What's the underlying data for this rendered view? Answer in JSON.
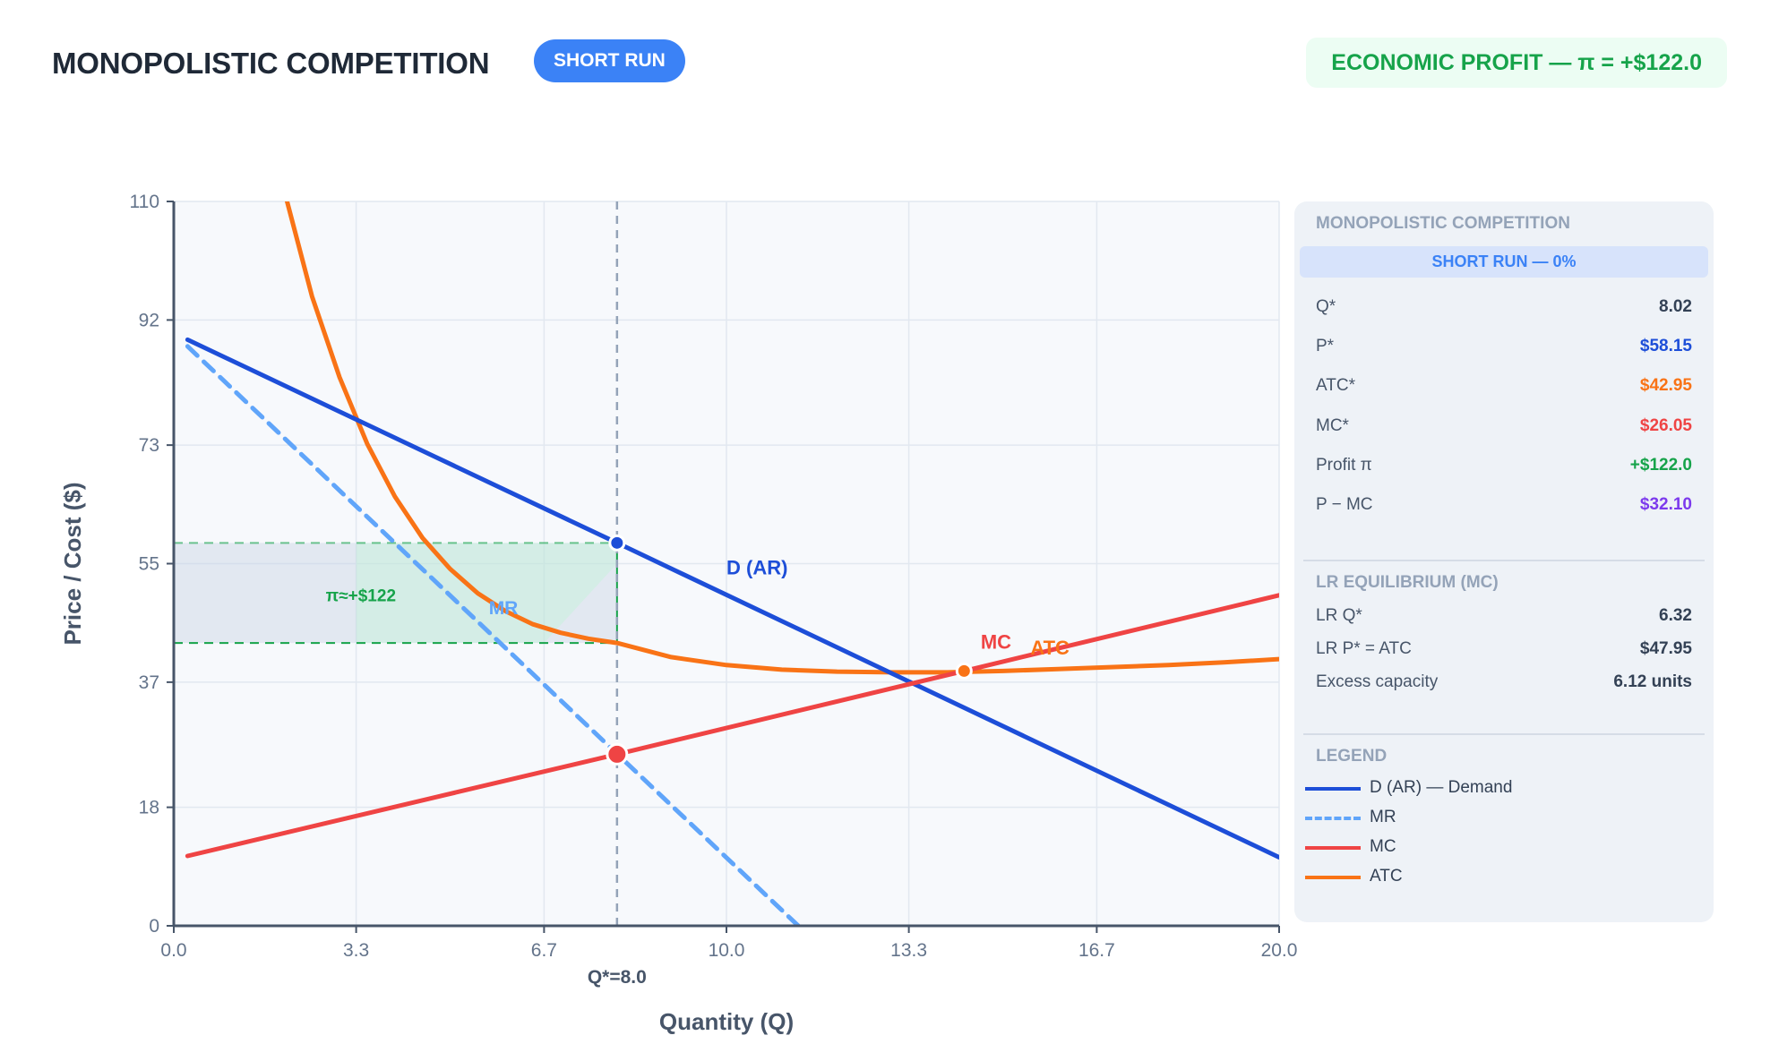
{
  "header": {
    "title": "MONOPOLISTIC COMPETITION",
    "badge": "SHORT RUN",
    "profit_pill": "ECONOMIC PROFIT — π = +$122.0"
  },
  "panel": {
    "heading": "MONOPOLISTIC COMPETITION",
    "band": "SHORT RUN — 0%",
    "stats": [
      {
        "label": "Q*",
        "value": "8.02",
        "color": "#334155"
      },
      {
        "label": "P*",
        "value": "$58.15",
        "color": "#1d4ed8"
      },
      {
        "label": "ATC*",
        "value": "$42.95",
        "color": "#f97316"
      },
      {
        "label": "MC*",
        "value": "$26.05",
        "color": "#ef4444"
      },
      {
        "label": "Profit π",
        "value": "+$122.0",
        "color": "#16a34a"
      },
      {
        "label": "P − MC",
        "value": "$32.10",
        "color": "#7c3aed"
      }
    ],
    "lr_heading": "LR EQUILIBRIUM (MC)",
    "lr_stats": [
      {
        "label": "LR Q*",
        "value": "6.32"
      },
      {
        "label": "LR P* = ATC",
        "value": "$47.95"
      },
      {
        "label": "Excess capacity",
        "value": "6.12 units"
      }
    ],
    "legend_heading": "LEGEND",
    "legend": [
      {
        "label": "D (AR) — Demand",
        "color": "#1d4ed8",
        "dashed": false
      },
      {
        "label": "MR",
        "color": "#60a5fa",
        "dashed": true
      },
      {
        "label": "MC",
        "color": "#ef4444",
        "dashed": false
      },
      {
        "label": "ATC",
        "color": "#f97316",
        "dashed": false
      }
    ]
  },
  "chart_data": {
    "type": "line",
    "xlabel": "Quantity (Q)",
    "ylabel": "Price / Cost ($)",
    "xlim": [
      0,
      20
    ],
    "ylim": [
      0,
      110
    ],
    "x_ticks": [
      "0.0",
      "3.3",
      "6.7",
      "10.0",
      "13.3",
      "16.7",
      "20.0"
    ],
    "y_ticks": [
      "0",
      "18",
      "37",
      "55",
      "73",
      "92",
      "110"
    ],
    "grid": true,
    "colors": {
      "demand": "#1d4ed8",
      "mr": "#60a5fa",
      "mc": "#ef4444",
      "atc": "#f97316",
      "profit": "#16a34a"
    },
    "series": [
      {
        "name": "D (AR)",
        "x": [
          0.25,
          8.02,
          20
        ],
        "y": [
          89.0,
          58.15,
          10.4
        ]
      },
      {
        "name": "MR",
        "x": [
          0.25,
          11.3
        ],
        "y": [
          88.0,
          0.0
        ]
      },
      {
        "name": "MC",
        "x": [
          0.25,
          8.02,
          14.3,
          20
        ],
        "y": [
          10.6,
          26.05,
          38.7,
          50.2
        ]
      },
      {
        "name": "ATC",
        "x": [
          2.05,
          2.5,
          3.0,
          3.5,
          4.0,
          4.5,
          5.0,
          5.5,
          6.0,
          6.5,
          7.0,
          7.5,
          8.02,
          9.0,
          10.0,
          11.0,
          12.0,
          13.0,
          14.0,
          15.0,
          16.0,
          17.0,
          18.0,
          19.0,
          20.0
        ],
        "y": [
          110.0,
          95.6,
          83.3,
          73.2,
          65.2,
          58.9,
          54.2,
          50.5,
          47.8,
          45.8,
          44.5,
          43.6,
          42.95,
          40.8,
          39.6,
          38.9,
          38.6,
          38.5,
          38.5,
          38.7,
          39.0,
          39.3,
          39.6,
          40.0,
          40.5
        ]
      }
    ],
    "equilibrium": {
      "q": 8.02,
      "p": 58.15,
      "atc": 42.95,
      "mc": 26.05
    },
    "atc_min_point": {
      "q": 14.3,
      "y": 38.7
    },
    "q_star_label": "Q*=8.0",
    "annotations": {
      "profit": "π≈+$122",
      "demand": "D (AR)",
      "mr": "MR",
      "mc": "MC",
      "atc": "ATC"
    }
  }
}
